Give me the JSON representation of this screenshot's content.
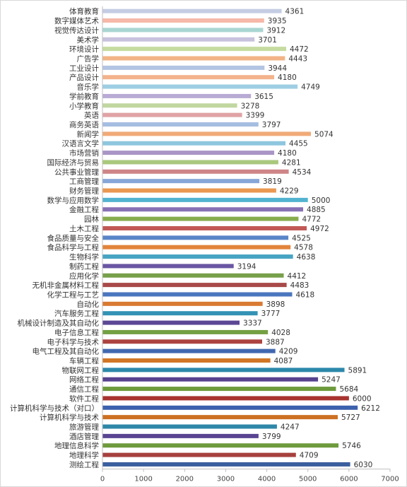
{
  "chart_data": {
    "type": "bar",
    "orientation": "horizontal",
    "title": "",
    "xlabel": "",
    "ylabel": "",
    "xlim": [
      0,
      7000
    ],
    "x_ticks": [
      0,
      1000,
      2000,
      3000,
      4000,
      5000,
      6000,
      7000
    ],
    "grid": false,
    "legend": "none",
    "data_labels": true,
    "categories": [
      "体育教育",
      "数字媒体艺术",
      "视觉传达设计",
      "美术学",
      "环境设计",
      "广告学",
      "工业设计",
      "产品设计",
      "音乐学",
      "学前教育",
      "小学教育",
      "英语",
      "商务英语",
      "新闻学",
      "汉语言文学",
      "市场营销",
      "国际经济与贸易",
      "公共事业管理",
      "工商管理",
      "财务管理",
      "数学与应用数学",
      "金融工程",
      "园林",
      "土木工程",
      "食品质量与安全",
      "食品科学与工程",
      "生物科学",
      "制药工程",
      "应用化学",
      "无机非金属材料工程",
      "化学工程与工艺",
      "自动化",
      "汽车服务工程",
      "机械设计制造及其自动化",
      "电子信息工程",
      "电子科学与技术",
      "电气工程及其自动化",
      "车辆工程",
      "物联网工程",
      "网络工程",
      "通信工程",
      "软件工程",
      "计算机科学与技术（对口）",
      "计算机科学与技术",
      "旅游管理",
      "酒店管理",
      "地理信息科学",
      "地理科学",
      "测绘工程"
    ],
    "values": [
      4361,
      3935,
      3912,
      3701,
      4472,
      4443,
      3944,
      4180,
      4749,
      3615,
      3278,
      3399,
      3797,
      5074,
      4455,
      4180,
      4281,
      4534,
      3819,
      4229,
      5000,
      4885,
      4772,
      4972,
      4525,
      4578,
      4638,
      3194,
      4412,
      4483,
      4618,
      3898,
      3777,
      3337,
      4028,
      3887,
      4209,
      4087,
      5891,
      5247,
      5684,
      6000,
      6212,
      5727,
      4247,
      3799,
      5746,
      4709,
      6030
    ],
    "colors": [
      "#c4cde3",
      "#f6b8a8",
      "#a9d6d2",
      "#c9c2de",
      "#c5dba0",
      "#f2b486",
      "#b2c4e2",
      "#f3b38c",
      "#9ecee3",
      "#b8abd4",
      "#c0d7a0",
      "#e0a3a5",
      "#a5bde1",
      "#f0aa78",
      "#8ec6de",
      "#a995c6",
      "#a9c87d",
      "#cf8587",
      "#86a6d8",
      "#eb9851",
      "#52b3d0",
      "#8771b4",
      "#87ac4f",
      "#c15855",
      "#5a85c8",
      "#e2843c",
      "#48a4c2",
      "#6a56a3",
      "#77a04a",
      "#a94947",
      "#4a76be",
      "#d97a33",
      "#3493b5",
      "#5b4794",
      "#74a043",
      "#ad4340",
      "#4168b0",
      "#d07626",
      "#2c88ab",
      "#56428f",
      "#6d9a3c",
      "#a8332f",
      "#3c62ad",
      "#cc7022",
      "#2f87a8",
      "#5a4592",
      "#6e9a3d",
      "#a6403e",
      "#3b5f9e"
    ]
  }
}
